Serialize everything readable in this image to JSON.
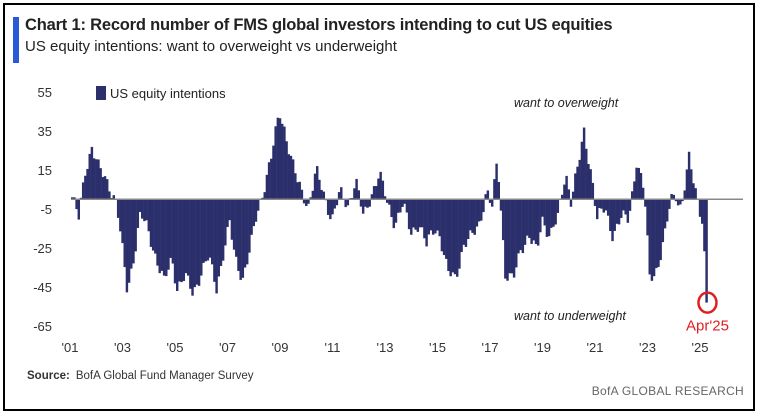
{
  "header": {
    "title": "Chart 1: Record number of FMS global investors intending to cut US equities",
    "subtitle": "US equity intentions: want to overweight vs underweight"
  },
  "footer": {
    "source_label": "Source:",
    "source_text": "BofA Global Fund Manager Survey",
    "brand": "BofA GLOBAL RESEARCH"
  },
  "chart_data": {
    "type": "bar",
    "title": "Chart 1: Record number of FMS global investors intending to cut US equities",
    "subtitle": "US equity intentions: want to overweight vs underweight",
    "legend": "US equity intentions",
    "legend_placement": "top-left",
    "ylim": [
      -65,
      55
    ],
    "y_ticks": [
      55,
      35,
      15,
      -5,
      -25,
      -45,
      -65
    ],
    "x_range": [
      2001,
      2026.6
    ],
    "x_ticks": [
      {
        "label": "'01",
        "value": 2001
      },
      {
        "label": "'03",
        "value": 2003
      },
      {
        "label": "'05",
        "value": 2005
      },
      {
        "label": "'07",
        "value": 2007
      },
      {
        "label": "'09",
        "value": 2009
      },
      {
        "label": "'11",
        "value": 2011
      },
      {
        "label": "'13",
        "value": 2013
      },
      {
        "label": "'15",
        "value": 2015
      },
      {
        "label": "'17",
        "value": 2017
      },
      {
        "label": "'19",
        "value": 2019
      },
      {
        "label": "'21",
        "value": 2021
      },
      {
        "label": "'23",
        "value": 2023
      },
      {
        "label": "'25",
        "value": 2025
      }
    ],
    "annotations": {
      "overweight": "want to overweight",
      "underweight": "want to underweight",
      "latest": "Apr'25"
    },
    "colors": {
      "bars": "#2b2f6b",
      "highlight": "#e02020",
      "zero_line": "#888888"
    },
    "keypoints": [
      [
        2001.0,
        1
      ],
      [
        2001.25,
        -10
      ],
      [
        2001.5,
        15
      ],
      [
        2001.75,
        27
      ],
      [
        2002.0,
        16
      ],
      [
        2002.4,
        8
      ],
      [
        2002.7,
        -3
      ],
      [
        2002.9,
        -25
      ],
      [
        2003.1,
        -47
      ],
      [
        2003.4,
        -25
      ],
      [
        2003.6,
        -8
      ],
      [
        2003.9,
        -16
      ],
      [
        2004.2,
        -30
      ],
      [
        2004.5,
        -43
      ],
      [
        2004.8,
        -30
      ],
      [
        2005.0,
        -45
      ],
      [
        2005.3,
        -40
      ],
      [
        2005.6,
        -48
      ],
      [
        2005.9,
        -38
      ],
      [
        2006.2,
        -30
      ],
      [
        2006.5,
        -45
      ],
      [
        2006.8,
        -25
      ],
      [
        2007.0,
        -13
      ],
      [
        2007.2,
        -30
      ],
      [
        2007.5,
        -40
      ],
      [
        2007.8,
        -25
      ],
      [
        2008.0,
        -10
      ],
      [
        2008.3,
        6
      ],
      [
        2008.6,
        22
      ],
      [
        2008.9,
        45
      ],
      [
        2009.1,
        36
      ],
      [
        2009.35,
        20
      ],
      [
        2009.6,
        8
      ],
      [
        2010.0,
        -3
      ],
      [
        2010.3,
        14
      ],
      [
        2010.6,
        2
      ],
      [
        2010.9,
        -10
      ],
      [
        2011.2,
        3
      ],
      [
        2011.5,
        -3
      ],
      [
        2011.8,
        10
      ],
      [
        2012.1,
        -10
      ],
      [
        2012.4,
        3
      ],
      [
        2012.7,
        13
      ],
      [
        2013.0,
        -2
      ],
      [
        2013.3,
        -12
      ],
      [
        2013.6,
        -3
      ],
      [
        2013.9,
        -17
      ],
      [
        2014.2,
        -12
      ],
      [
        2014.5,
        -24
      ],
      [
        2014.8,
        -14
      ],
      [
        2015.0,
        -18
      ],
      [
        2015.3,
        -38
      ],
      [
        2015.6,
        -40
      ],
      [
        2015.9,
        -24
      ],
      [
        2016.2,
        -20
      ],
      [
        2016.5,
        -12
      ],
      [
        2016.8,
        4
      ],
      [
        2017.0,
        -5
      ],
      [
        2017.2,
        22
      ],
      [
        2017.5,
        -38
      ],
      [
        2017.8,
        -42
      ],
      [
        2018.1,
        -25
      ],
      [
        2018.4,
        -18
      ],
      [
        2018.7,
        -28
      ],
      [
        2018.9,
        -10
      ],
      [
        2019.2,
        -18
      ],
      [
        2019.5,
        -10
      ],
      [
        2019.8,
        14
      ],
      [
        2020.0,
        0
      ],
      [
        2020.3,
        18
      ],
      [
        2020.5,
        34
      ],
      [
        2020.8,
        12
      ],
      [
        2021.0,
        -10
      ],
      [
        2021.3,
        -5
      ],
      [
        2021.6,
        -18
      ],
      [
        2021.9,
        -10
      ],
      [
        2022.2,
        -10
      ],
      [
        2022.5,
        20
      ],
      [
        2022.8,
        3
      ],
      [
        2023.0,
        -40
      ],
      [
        2023.3,
        -35
      ],
      [
        2023.6,
        -18
      ],
      [
        2023.8,
        0
      ],
      [
        2024.0,
        3
      ],
      [
        2024.2,
        -5
      ],
      [
        2024.5,
        20
      ],
      [
        2024.8,
        2
      ],
      [
        2025.0,
        -10
      ],
      [
        2025.1,
        -30
      ],
      [
        2025.2,
        -53
      ]
    ],
    "latest_value": -53
  }
}
